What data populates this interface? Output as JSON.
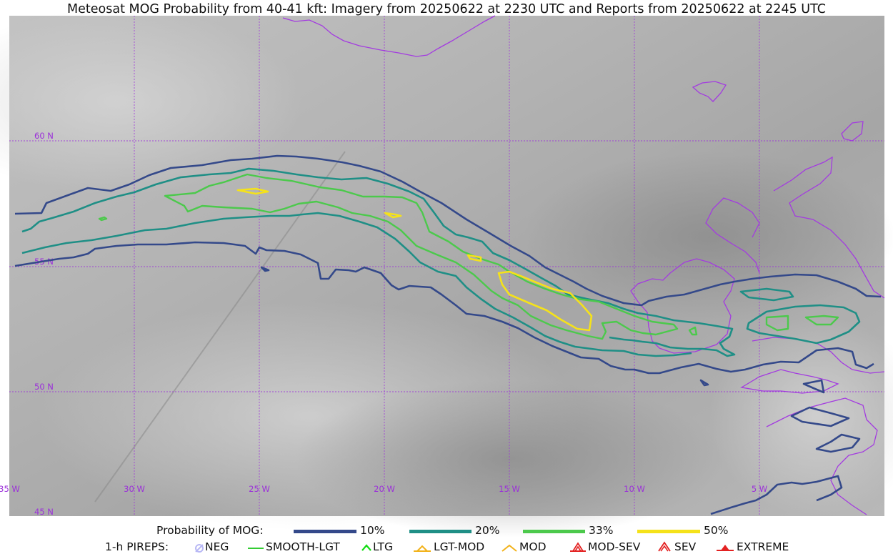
{
  "title": "Meteosat MOG Probability from 40-41 kft: Imagery from 20250622 at 2230 UTC and Reports from 20250622 at 2245 UTC",
  "map": {
    "lat_labels": [
      "60 N",
      "55 N",
      "50 N",
      "45 N"
    ],
    "lon_labels": [
      "35 W",
      "30 W",
      "25 W",
      "20 W",
      "15 W",
      "10 W",
      "5 W"
    ],
    "colors": {
      "coastline": "#a33be0",
      "grid": "#9b30d9",
      "p10": "#34498a",
      "p20": "#1f8f86",
      "p33": "#4cc94c",
      "p50": "#f5e21a"
    }
  },
  "legend": {
    "probability_label": "Probability of MOG:",
    "levels": [
      {
        "label": "10%",
        "color": "#34498a"
      },
      {
        "label": "20%",
        "color": "#1f8f86"
      },
      {
        "label": "33%",
        "color": "#4cc94c"
      },
      {
        "label": "50%",
        "color": "#f5e21a"
      }
    ],
    "pireps_label": "1-h PIREPS:",
    "pireps": [
      {
        "label": "NEG",
        "icon": "neg-icon",
        "color": "#b9b9f5"
      },
      {
        "label": "SMOOTH-LGT",
        "icon": "smooth-lgt-icon",
        "color": "#33cc33"
      },
      {
        "label": "LTG",
        "icon": "ltg-icon",
        "color": "#11dd11"
      },
      {
        "label": "LGT-MOD",
        "icon": "lgt-mod-icon",
        "color": "#f2b21a"
      },
      {
        "label": "MOD",
        "icon": "mod-icon",
        "color": "#f2b21a"
      },
      {
        "label": "MOD-SEV",
        "icon": "mod-sev-icon",
        "color": "#e32222"
      },
      {
        "label": "SEV",
        "icon": "sev-icon",
        "color": "#e32222"
      },
      {
        "label": "EXTREME",
        "icon": "extreme-icon",
        "color": "#e32222"
      }
    ]
  }
}
